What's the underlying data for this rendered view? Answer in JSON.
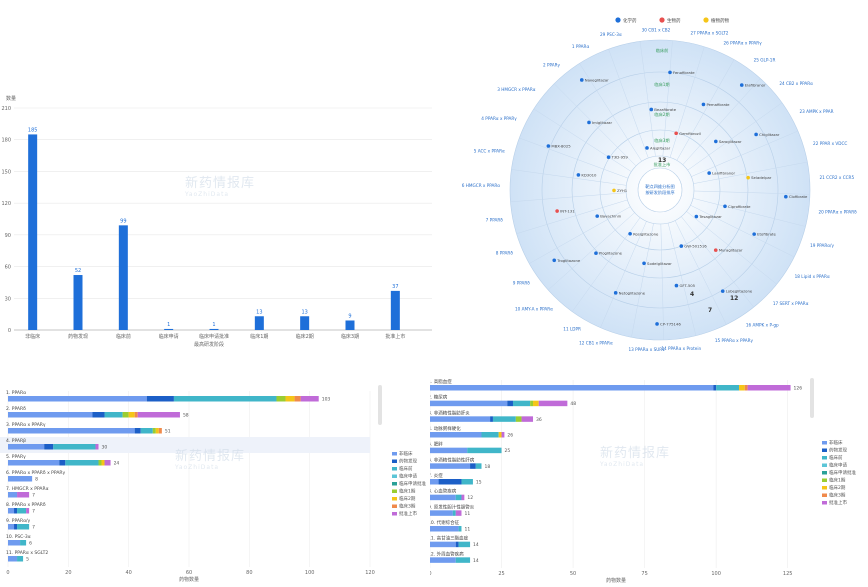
{
  "watermark": {
    "name": "新药情报库",
    "sub": "YaoZhiData"
  },
  "stage_chart": {
    "type": "bar",
    "ylabel": "数量",
    "xlabel": "最高研发阶段",
    "ylim": [
      0,
      210
    ],
    "yticks": [
      0,
      30,
      60,
      90,
      120,
      150,
      180,
      210
    ],
    "categories": [
      "非临床",
      "药物发现",
      "临床前",
      "临床申请",
      "临床申请批准",
      "临床1期",
      "临床2期",
      "临床3期",
      "批准上市"
    ],
    "values": [
      185,
      52,
      99,
      1,
      1,
      13,
      13,
      9,
      37
    ],
    "color": "#1e6fd9"
  },
  "radial_chart": {
    "type": "scatter",
    "legend": [
      {
        "name": "化学药",
        "color": "#1e6fd9"
      },
      {
        "name": "生物药",
        "color": "#e8504f"
      },
      {
        "name": "植物药物",
        "color": "#f5c518"
      }
    ],
    "center_text": [
      "靶点四维分析图",
      "按研发阶段排序"
    ],
    "ring_labels": [
      "临床前",
      "临床1期",
      "临床2期",
      "临床3期",
      "批准上市"
    ],
    "spoke_counts": [
      "13",
      "12",
      "7",
      "4"
    ],
    "targets": [
      "29 PSC-3α",
      "30 CB1 x CB2",
      "27 PPARα x SGLT2",
      "26 PPARα x PPARγ",
      "25 GLP-1R",
      "24 CB2 x PPARα",
      "23 AMPK x PPAR",
      "22 PPAR x VDCC",
      "21 CCR2 x CCR5",
      "20 PPARα x PPARδ",
      "19 PPARα/γ",
      "18 Lipid x PPARα",
      "17 SERT x PPARα",
      "16 AMPK x P-gp",
      "15 PPARα x PPARγ",
      "14 PPARα x Protein",
      "13 PPARα x SUR1",
      "12 CB1 x PPARα",
      "11 LDPR",
      "10 AMY-A x PPARα",
      "9 PPARδ",
      "8 PPARδ",
      "7 PPARδ",
      "6 HMGCR x PPARα",
      "5 ACC x PPARα",
      "4 PPARα x PPARγ",
      "3 HMGCR x PPARα",
      "2 PPARγ",
      "1 PPARα"
    ],
    "drugs": [
      "Aleglitazar",
      "Bezafibrate",
      "Fenofibrate",
      "Gemfibrozil",
      "Pemafibrate",
      "Elafibranor",
      "Saroglitazar",
      "Chiglitazar",
      "Lanifibranor",
      "Seladelpar",
      "Clofibrate",
      "Ciprofibrate",
      "Etofibrate",
      "Tesaglitazar",
      "Muraglitazar",
      "Lobeglitazone",
      "GW-501516",
      "GFT-505",
      "CP-775146",
      "Sodelglitazar",
      "Netoglitazone",
      "Rosiglitazone",
      "Pioglitazone",
      "Troglitazone",
      "Bavachinin",
      "INT-131",
      "ZYH1",
      "KD3010",
      "MBX-8025",
      "T3D-959",
      "Imiglitazar",
      "Naveglitazar"
    ]
  },
  "target_chart": {
    "type": "bar",
    "xlabel": "药物数量",
    "xlim": [
      0,
      120
    ],
    "xticks": [
      0,
      20,
      40,
      60,
      80,
      100,
      120
    ],
    "categories": [
      "1. PPARα",
      "2. PPARδ",
      "3. PPARα x PPARγ",
      "4. PPARβ",
      "5. PPARγ",
      "6. PPARα x PPARδ x PPARγ",
      "7. HMGCR x PPARα",
      "8. PPARα x PPARδ",
      "9. PPARα/γ",
      "10. PSC-3α",
      "11. PPARα x SGLT2"
    ],
    "legend": [
      "非临床",
      "药物发现",
      "临床前",
      "临床申请",
      "临床申请批准",
      "临床1期",
      "临床2期",
      "临床3期",
      "批准上市"
    ],
    "colors": [
      "#6f9bef",
      "#1c5fc7",
      "#40b6c9",
      "#5cc6d7",
      "#2aa198",
      "#9acd32",
      "#f5c518",
      "#f08a4b",
      "#c06bd8"
    ],
    "stacks": [
      [
        46,
        9,
        34,
        0,
        0,
        3,
        3,
        2,
        6
      ],
      [
        28,
        4,
        6,
        0,
        0,
        2,
        2,
        1,
        14
      ],
      [
        42,
        2,
        4,
        0,
        0,
        1,
        1,
        1,
        0
      ],
      [
        12,
        3,
        14,
        0,
        0,
        0,
        0,
        0,
        1
      ],
      [
        17,
        2,
        11,
        0,
        0,
        1,
        1,
        0,
        2
      ],
      [
        8,
        0,
        0,
        0,
        0,
        0,
        0,
        0,
        0
      ],
      [
        3,
        0,
        0,
        0,
        0,
        0,
        0,
        0,
        4
      ],
      [
        2,
        1,
        3,
        0,
        0,
        0,
        0,
        0,
        1
      ],
      [
        2,
        1,
        4,
        0,
        0,
        0,
        0,
        0,
        0
      ],
      [
        4,
        0,
        2,
        0,
        0,
        0,
        0,
        0,
        0
      ],
      [
        3,
        0,
        2,
        0,
        0,
        0,
        0,
        0,
        0
      ]
    ],
    "totals": [
      103,
      58,
      51,
      30,
      24,
      8,
      7,
      7,
      7,
      6,
      5
    ]
  },
  "disease_chart": {
    "type": "bar",
    "xlabel": "药物数量",
    "xlim": [
      0,
      130
    ],
    "xticks": [
      0,
      25,
      50,
      75,
      100,
      125
    ],
    "categories": [
      "1. 高脂血症",
      "2. 糖尿病",
      "3. 非酒精性脂肪肝炎",
      "4. 动脉粥样硬化",
      "5. 肥胖",
      "6. 非酒精性脂肪性肝病",
      "7. 炎症",
      "8. 心血管疾病",
      "9. 原发性胆汁性胆管炎",
      "10. 代谢综合征",
      "11. 高甘油三酯血症",
      "12. 外周血管疾病"
    ],
    "legend": [
      "非临床",
      "药物发现",
      "临床前",
      "临床申请",
      "临床申请批准",
      "临床1期",
      "临床2期",
      "临床3期",
      "批准上市"
    ],
    "colors": [
      "#6f9bef",
      "#1c5fc7",
      "#40b6c9",
      "#5cc6d7",
      "#2aa198",
      "#9acd32",
      "#f5c518",
      "#f08a4b",
      "#c06bd8"
    ],
    "stacks": [
      [
        99,
        1,
        8,
        0,
        0,
        0,
        2,
        1,
        15
      ],
      [
        27,
        2,
        6,
        0,
        0,
        1,
        2,
        0,
        10
      ],
      [
        21,
        1,
        8,
        0,
        0,
        2,
        0,
        0,
        4
      ],
      [
        18,
        0,
        6,
        0,
        0,
        0,
        1,
        0,
        1
      ],
      [
        13,
        0,
        12,
        0,
        0,
        0,
        0,
        0,
        0
      ],
      [
        14,
        2,
        2,
        0,
        0,
        0,
        0,
        0,
        0
      ],
      [
        3,
        8,
        4,
        0,
        0,
        0,
        0,
        0,
        0
      ],
      [
        9,
        0,
        2,
        0,
        0,
        0,
        0,
        0,
        1
      ],
      [
        8,
        0,
        1,
        0,
        0,
        0,
        0,
        0,
        2
      ],
      [
        10,
        0,
        1,
        0,
        0,
        0,
        0,
        0,
        0
      ],
      [
        9,
        1,
        4,
        0,
        0,
        0,
        0,
        0,
        0
      ],
      [
        9,
        0,
        5,
        0,
        0,
        0,
        0,
        0,
        0
      ]
    ],
    "totals": [
      126,
      48,
      36,
      26,
      25,
      18,
      15,
      12,
      11,
      11,
      14,
      14
    ]
  }
}
